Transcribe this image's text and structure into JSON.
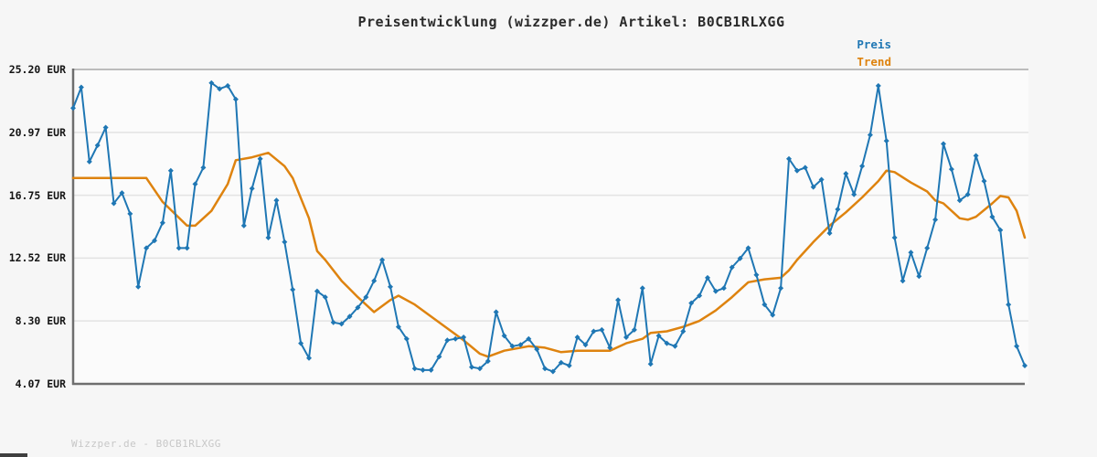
{
  "header": {
    "title": "Preisentwicklung (wizzper.de) Artikel: B0CB1RLXGG"
  },
  "legend": {
    "items": [
      {
        "label": "Preis",
        "color": "#1f77b4"
      },
      {
        "label": "Trend",
        "color": "#de830f"
      }
    ]
  },
  "footer": {
    "watermark": "Wizzper.de - B0CB1RLXGG"
  },
  "colors": {
    "page_background": "#f6f6f6",
    "plot_background": "#fbfbfb",
    "gridline": "#e3e3e3",
    "top_border": "#a8a8a8",
    "axis": "#6e6e6e",
    "preis_line": "#1f77b4",
    "trend_line": "#de830f"
  },
  "chart_data": {
    "type": "line",
    "title": "Preisentwicklung (wizzper.de) Artikel: B0CB1RLXGG",
    "xlabel": "",
    "ylabel": "EUR",
    "ylim": [
      4.07,
      25.2
    ],
    "grid": "horizontal",
    "legend_position": "top-right",
    "y_ticks": [
      {
        "label": "25.20 EUR",
        "value": 25.2
      },
      {
        "label": "20.97 EUR",
        "value": 20.97
      },
      {
        "label": "16.75 EUR",
        "value": 16.75
      },
      {
        "label": "12.52 EUR",
        "value": 12.52
      },
      {
        "label": "8.30 EUR",
        "value": 8.3
      },
      {
        "label": "4.07 EUR",
        "value": 4.07
      }
    ],
    "series": [
      {
        "name": "Preis",
        "color": "#1f77b4",
        "marker": "diamond",
        "values": [
          22.6,
          24.0,
          19.0,
          20.1,
          21.3,
          16.2,
          16.9,
          15.5,
          10.6,
          13.2,
          13.7,
          14.9,
          18.4,
          13.2,
          13.2,
          17.5,
          18.6,
          24.3,
          23.9,
          24.1,
          23.2,
          14.7,
          17.2,
          19.2,
          13.9,
          16.4,
          13.6,
          10.4,
          6.8,
          5.8,
          10.3,
          9.9,
          8.2,
          8.1,
          8.6,
          9.2,
          9.9,
          11.0,
          12.4,
          10.6,
          7.9,
          7.1,
          5.1,
          5.0,
          5.0,
          5.9,
          7.0,
          7.1,
          7.2,
          5.2,
          5.1,
          5.6,
          8.9,
          7.3,
          6.6,
          6.7,
          7.1,
          6.4,
          5.1,
          4.9,
          5.5,
          5.3,
          7.2,
          6.7,
          7.6,
          7.7,
          6.5,
          9.7,
          7.2,
          7.7,
          10.5,
          5.4,
          7.3,
          6.8,
          6.6,
          7.6,
          9.5,
          10.0,
          11.2,
          10.3,
          10.5,
          11.9,
          12.5,
          13.2,
          11.4,
          9.4,
          8.7,
          10.5,
          19.2,
          18.4,
          18.6,
          17.3,
          17.8,
          14.2,
          15.8,
          18.2,
          16.8,
          18.7,
          20.8,
          24.1,
          20.4,
          13.9,
          11.0,
          12.9,
          11.3,
          13.2,
          15.1,
          20.2,
          18.5,
          16.4,
          16.8,
          19.4,
          17.7,
          15.3,
          14.4,
          9.4,
          6.6,
          5.3
        ]
      },
      {
        "name": "Trend",
        "color": "#de830f",
        "marker": "none",
        "points": [
          [
            0,
            17.9
          ],
          [
            9,
            17.9
          ],
          [
            11,
            16.3
          ],
          [
            14,
            14.7
          ],
          [
            15,
            14.7
          ],
          [
            17,
            15.7
          ],
          [
            19,
            17.5
          ],
          [
            20,
            19.1
          ],
          [
            22,
            19.3
          ],
          [
            24,
            19.6
          ],
          [
            26,
            18.7
          ],
          [
            27,
            17.9
          ],
          [
            29,
            15.2
          ],
          [
            30,
            13.0
          ],
          [
            31,
            12.4
          ],
          [
            33,
            11.0
          ],
          [
            35,
            9.9
          ],
          [
            37,
            8.9
          ],
          [
            39,
            9.7
          ],
          [
            40,
            10.0
          ],
          [
            42,
            9.4
          ],
          [
            44,
            8.6
          ],
          [
            46,
            7.8
          ],
          [
            48,
            7.0
          ],
          [
            50,
            6.1
          ],
          [
            51,
            5.9
          ],
          [
            53,
            6.3
          ],
          [
            56,
            6.6
          ],
          [
            58,
            6.5
          ],
          [
            60,
            6.2
          ],
          [
            62,
            6.3
          ],
          [
            66,
            6.3
          ],
          [
            68,
            6.8
          ],
          [
            70,
            7.1
          ],
          [
            71,
            7.5
          ],
          [
            73,
            7.6
          ],
          [
            75,
            7.9
          ],
          [
            77,
            8.3
          ],
          [
            79,
            9.0
          ],
          [
            81,
            9.9
          ],
          [
            83,
            10.9
          ],
          [
            85,
            11.1
          ],
          [
            87,
            11.2
          ],
          [
            88,
            11.7
          ],
          [
            89,
            12.4
          ],
          [
            91,
            13.6
          ],
          [
            93,
            14.7
          ],
          [
            95,
            15.6
          ],
          [
            97,
            16.6
          ],
          [
            99,
            17.7
          ],
          [
            100,
            18.4
          ],
          [
            101,
            18.3
          ],
          [
            103,
            17.6
          ],
          [
            105,
            17.0
          ],
          [
            106,
            16.4
          ],
          [
            107,
            16.2
          ],
          [
            109,
            15.2
          ],
          [
            110,
            15.1
          ],
          [
            111,
            15.3
          ],
          [
            113,
            16.2
          ],
          [
            114,
            16.7
          ],
          [
            115,
            16.6
          ],
          [
            116,
            15.7
          ],
          [
            117,
            13.9
          ]
        ]
      }
    ]
  }
}
